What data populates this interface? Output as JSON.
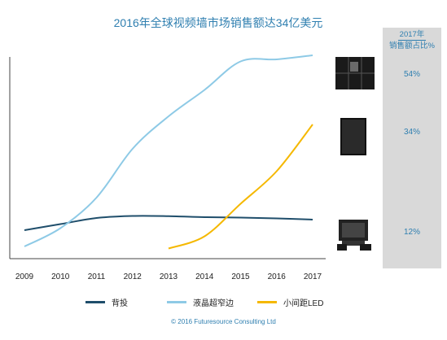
{
  "chart_data": {
    "type": "line",
    "title": "2016年全球视频墙市场销售额达34亿美元",
    "x": [
      "2009",
      "2010",
      "2011",
      "2012",
      "2013",
      "2014",
      "2015",
      "2016",
      "2017"
    ],
    "xlabel": "",
    "ylabel": "",
    "grid": false,
    "legend_position": "bottom",
    "series": [
      {
        "name": "背投",
        "color": "#1f4e6b",
        "values": [
          6,
          9,
          12,
          13,
          12.9,
          12.4,
          12.2,
          11.8,
          11.2
        ]
      },
      {
        "name": "液晶超窄边",
        "color": "#8ecae6",
        "values": [
          -2,
          7,
          22,
          46,
          62,
          75,
          89,
          90,
          92
        ]
      },
      {
        "name": "小间距LED",
        "color": "#f5b800",
        "values": [
          null,
          null,
          null,
          null,
          -3,
          3,
          19,
          35,
          58
        ]
      }
    ],
    "share_panel": {
      "heading_line1": "2017年",
      "heading_line2": "销售额占比%",
      "values": [
        "54%",
        "34%",
        "12%"
      ]
    },
    "footer": "© 2016 Futuresource  Consulting Ltd"
  }
}
